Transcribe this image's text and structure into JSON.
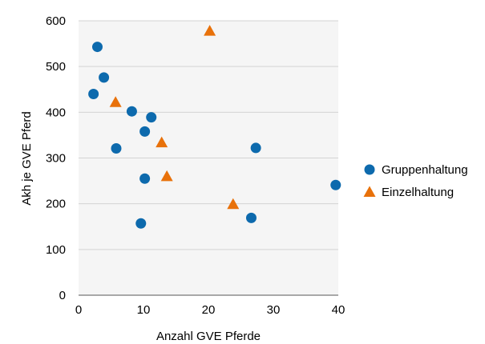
{
  "chart_data": {
    "type": "scatter",
    "xlabel": "Anzahl GVE Pferde",
    "ylabel": "Akh je GVE Pferd",
    "xlim": [
      0,
      40
    ],
    "ylim": [
      0,
      600
    ],
    "x_ticks": [
      0,
      10,
      20,
      30,
      40
    ],
    "y_ticks": [
      0,
      100,
      200,
      300,
      400,
      500,
      600
    ],
    "grid": "horizontal",
    "legend_position": "right",
    "series": [
      {
        "name": "Gruppenhaltung",
        "marker": "circle",
        "color": "#0d6aad",
        "points": [
          {
            "x": 2.9,
            "y": 543
          },
          {
            "x": 3.9,
            "y": 476
          },
          {
            "x": 2.3,
            "y": 440
          },
          {
            "x": 8.2,
            "y": 402
          },
          {
            "x": 11.2,
            "y": 389
          },
          {
            "x": 10.2,
            "y": 358
          },
          {
            "x": 5.8,
            "y": 321
          },
          {
            "x": 10.2,
            "y": 255
          },
          {
            "x": 9.6,
            "y": 157
          },
          {
            "x": 27.3,
            "y": 322
          },
          {
            "x": 26.6,
            "y": 169
          },
          {
            "x": 39.6,
            "y": 241
          }
        ]
      },
      {
        "name": "Einzelhaltung",
        "marker": "triangle",
        "color": "#e8710a",
        "points": [
          {
            "x": 20.2,
            "y": 578
          },
          {
            "x": 5.7,
            "y": 422
          },
          {
            "x": 12.8,
            "y": 334
          },
          {
            "x": 13.6,
            "y": 260
          },
          {
            "x": 23.8,
            "y": 199
          }
        ]
      }
    ]
  }
}
